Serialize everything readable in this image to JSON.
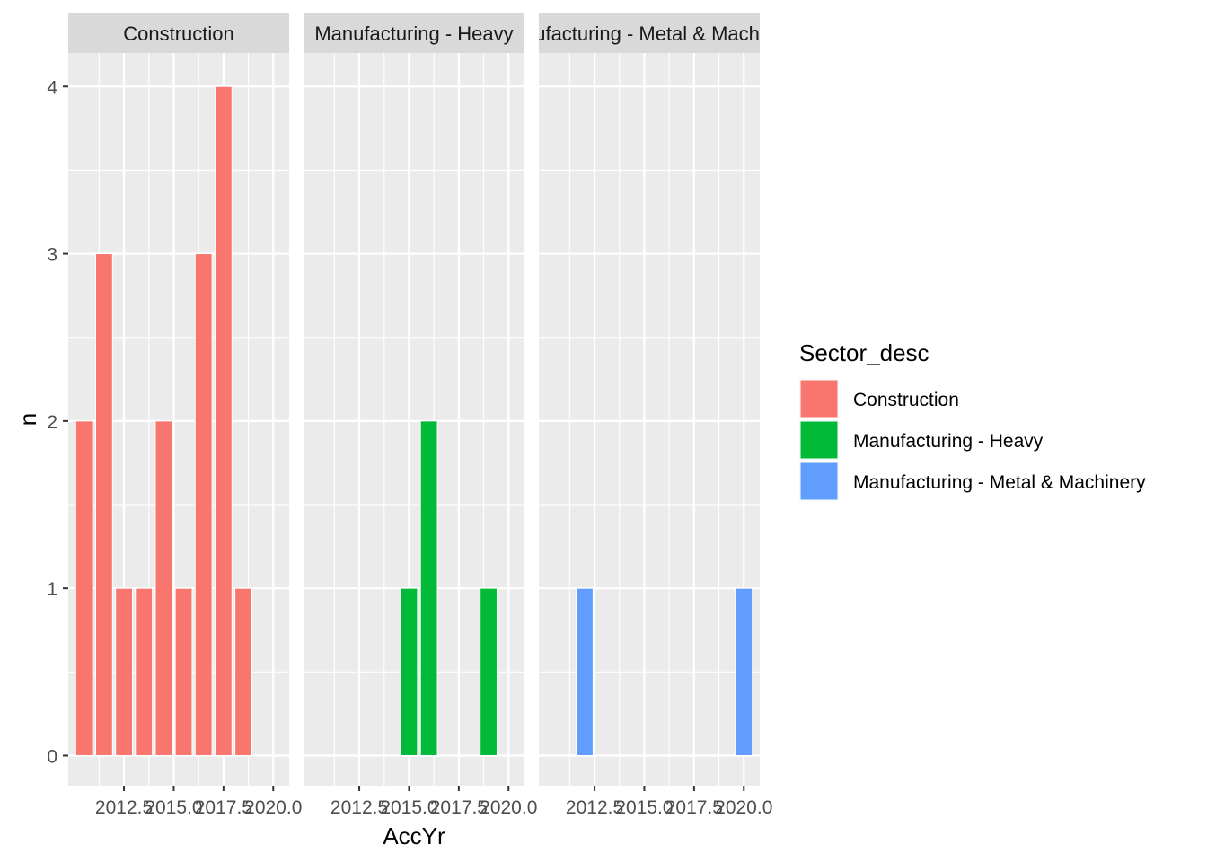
{
  "chart_data": {
    "type": "bar",
    "faceted_by": "Sector_desc",
    "xlabel": "AccYr",
    "ylabel": "n",
    "x_ticks": [
      2012.5,
      2015.0,
      2017.5,
      2020.0
    ],
    "x_tick_labels": [
      "2012.5",
      "2015.0",
      "2017.5",
      "2020.0"
    ],
    "y_ticks": [
      0,
      1,
      2,
      3,
      4
    ],
    "y_tick_labels": [
      "0",
      "1",
      "2",
      "3",
      "4"
    ],
    "xlim": [
      2009.7,
      2020.8
    ],
    "ylim": [
      -0.18,
      4.2
    ],
    "bar_width_years": 0.85,
    "grid": true,
    "legend": {
      "title": "Sector_desc",
      "placement": "right",
      "entries": [
        {
          "label": "Construction",
          "color": "#F8766D"
        },
        {
          "label": "Manufacturing - Heavy",
          "color": "#00BA38"
        },
        {
          "label": "Manufacturing - Metal & Machinery",
          "color": "#619CFF"
        }
      ]
    },
    "panels": [
      {
        "strip": "Construction",
        "series": "Construction",
        "color": "#F8766D",
        "x": [
          2010.5,
          2011.5,
          2012.5,
          2013.5,
          2014.5,
          2015.5,
          2016.5,
          2017.5,
          2018.5
        ],
        "values": [
          2,
          3,
          1,
          1,
          2,
          1,
          3,
          4,
          1
        ]
      },
      {
        "strip": "Manufacturing - Heavy",
        "series": "Manufacturing - Heavy",
        "color": "#00BA38",
        "x": [
          2015.0,
          2016.0,
          2019.0
        ],
        "values": [
          1,
          2,
          1
        ]
      },
      {
        "strip": "Manufacturing - Metal & Machinery",
        "series": "Manufacturing - Metal & Machinery",
        "color": "#619CFF",
        "x": [
          2012.0,
          2020.0
        ],
        "values": [
          1,
          1
        ]
      }
    ]
  }
}
